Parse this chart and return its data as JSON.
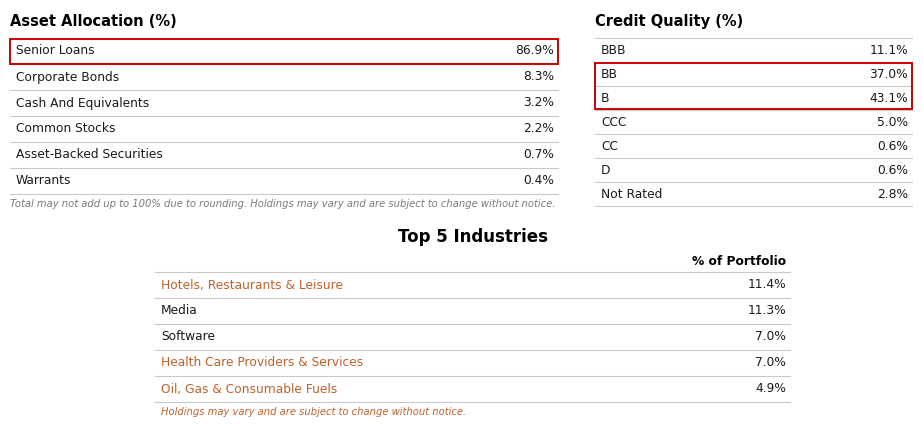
{
  "asset_title": "Asset Allocation (%)",
  "asset_rows": [
    [
      "Senior Loans",
      "86.9%"
    ],
    [
      "Corporate Bonds",
      "8.3%"
    ],
    [
      "Cash And Equivalents",
      "3.2%"
    ],
    [
      "Common Stocks",
      "2.2%"
    ],
    [
      "Asset-Backed Securities",
      "0.7%"
    ],
    [
      "Warrants",
      "0.4%"
    ]
  ],
  "asset_highlight_rows": [
    0
  ],
  "asset_footnote": "Total may not add up to 100% due to rounding. Holdings may vary and are subject to change without notice.",
  "credit_title": "Credit Quality (%)",
  "credit_rows": [
    [
      "BBB",
      "11.1%"
    ],
    [
      "BB",
      "37.0%"
    ],
    [
      "B",
      "43.1%"
    ],
    [
      "CCC",
      "5.0%"
    ],
    [
      "CC",
      "0.6%"
    ],
    [
      "D",
      "0.6%"
    ],
    [
      "Not Rated",
      "2.8%"
    ]
  ],
  "credit_highlight_rows": [
    1,
    2
  ],
  "industry_title": "Top 5 Industries",
  "industry_header": "% of Portfolio",
  "industry_rows": [
    [
      "Hotels, Restaurants & Leisure",
      "11.4%"
    ],
    [
      "Media",
      "11.3%"
    ],
    [
      "Software",
      "7.0%"
    ],
    [
      "Health Care Providers & Services",
      "7.0%"
    ],
    [
      "Oil, Gas & Consumable Fuels",
      "4.9%"
    ]
  ],
  "industry_orange_rows": [
    0,
    3,
    4
  ],
  "industry_footnote": "Holdings may vary and are subject to change without notice.",
  "bg_color": "#ffffff",
  "title_color": "#000000",
  "row_label_color": "#1a1a1a",
  "row_value_color": "#1a1a1a",
  "orange_row_color": "#c0622a",
  "footnote_color": "#7a7a7a",
  "industry_footnote_color": "#c0622a",
  "line_color": "#c8c8c8",
  "highlight_border_color": "#cc0000",
  "title_fontsize": 10.5,
  "row_fontsize": 8.8,
  "footnote_fontsize": 7.2
}
